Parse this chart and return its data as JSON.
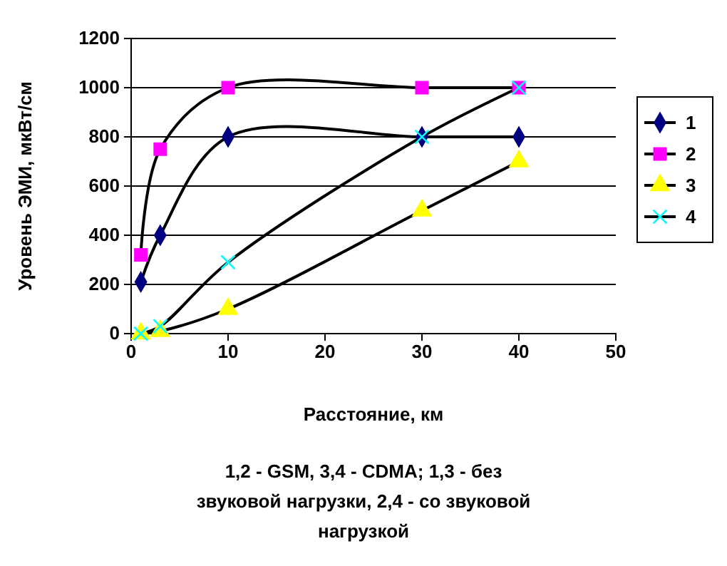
{
  "chart_data": {
    "type": "line",
    "xlabel": "Расстояние, км",
    "ylabel": "Уровень ЭМИ, мкВт/см",
    "xlim": [
      0,
      50
    ],
    "xticks": [
      0,
      10,
      20,
      30,
      40,
      50
    ],
    "ylim": [
      0,
      1200
    ],
    "yticks": [
      0,
      200,
      400,
      600,
      800,
      1000,
      1200
    ],
    "grid": "y",
    "legend": "right",
    "annotations": [
      "1,2 - GSM, 3,4 - CDMA; 1,3 - без звуковой нагрузки, 2,4 - со звуковой нагрузкой"
    ],
    "x": [
      1,
      3,
      10,
      30,
      40
    ],
    "series": [
      {
        "name": "1",
        "color": "#000080",
        "marker": "diamond",
        "values": [
          210,
          400,
          800,
          800,
          800
        ]
      },
      {
        "name": "2",
        "color": "#ff00ff",
        "marker": "square",
        "values": [
          320,
          750,
          1000,
          1000,
          1000
        ]
      },
      {
        "name": "3",
        "color": "#ffff00",
        "marker": "triangle",
        "values": [
          0,
          10,
          100,
          500,
          700
        ]
      },
      {
        "name": "4",
        "color": "#00ffff",
        "marker": "cross",
        "values": [
          0,
          30,
          290,
          800,
          1000
        ]
      }
    ]
  }
}
